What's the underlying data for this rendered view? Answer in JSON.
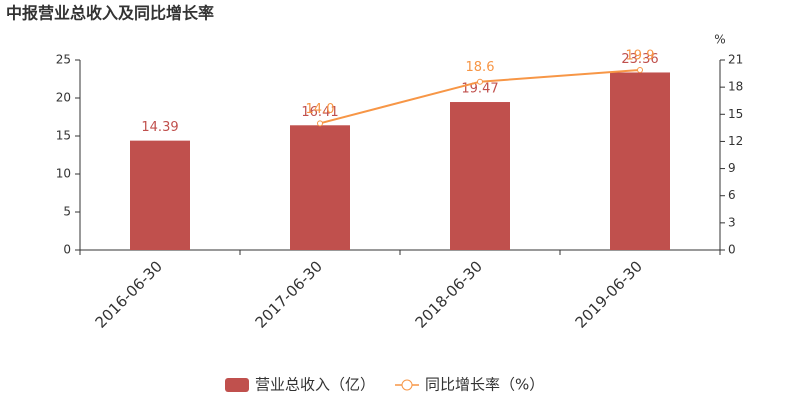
{
  "chart_data": {
    "type": "bar_line",
    "title": "中报营业总收入及同比增长率",
    "categories": [
      "2016-06-30",
      "2017-06-30",
      "2018-06-30",
      "2019-06-30"
    ],
    "series": [
      {
        "name": "营业总收入（亿）",
        "type": "bar",
        "color": "#c0504d",
        "values": [
          14.39,
          16.41,
          19.47,
          23.36
        ]
      },
      {
        "name": "同比增长率（%）",
        "type": "line",
        "axis": "y2",
        "color": "#f79646",
        "values": [
          null,
          14.0,
          18.6,
          19.9
        ],
        "value_labels": [
          null,
          "14.0",
          "18.6",
          "19.9"
        ]
      }
    ],
    "ylim": [
      0,
      25
    ],
    "yticks": [
      0,
      5,
      10,
      15,
      20,
      25
    ],
    "y2label": "%",
    "y2lim": [
      0,
      21
    ],
    "y2ticks": [
      0,
      3,
      6,
      9,
      12,
      15,
      18,
      21
    ],
    "grid": false
  }
}
